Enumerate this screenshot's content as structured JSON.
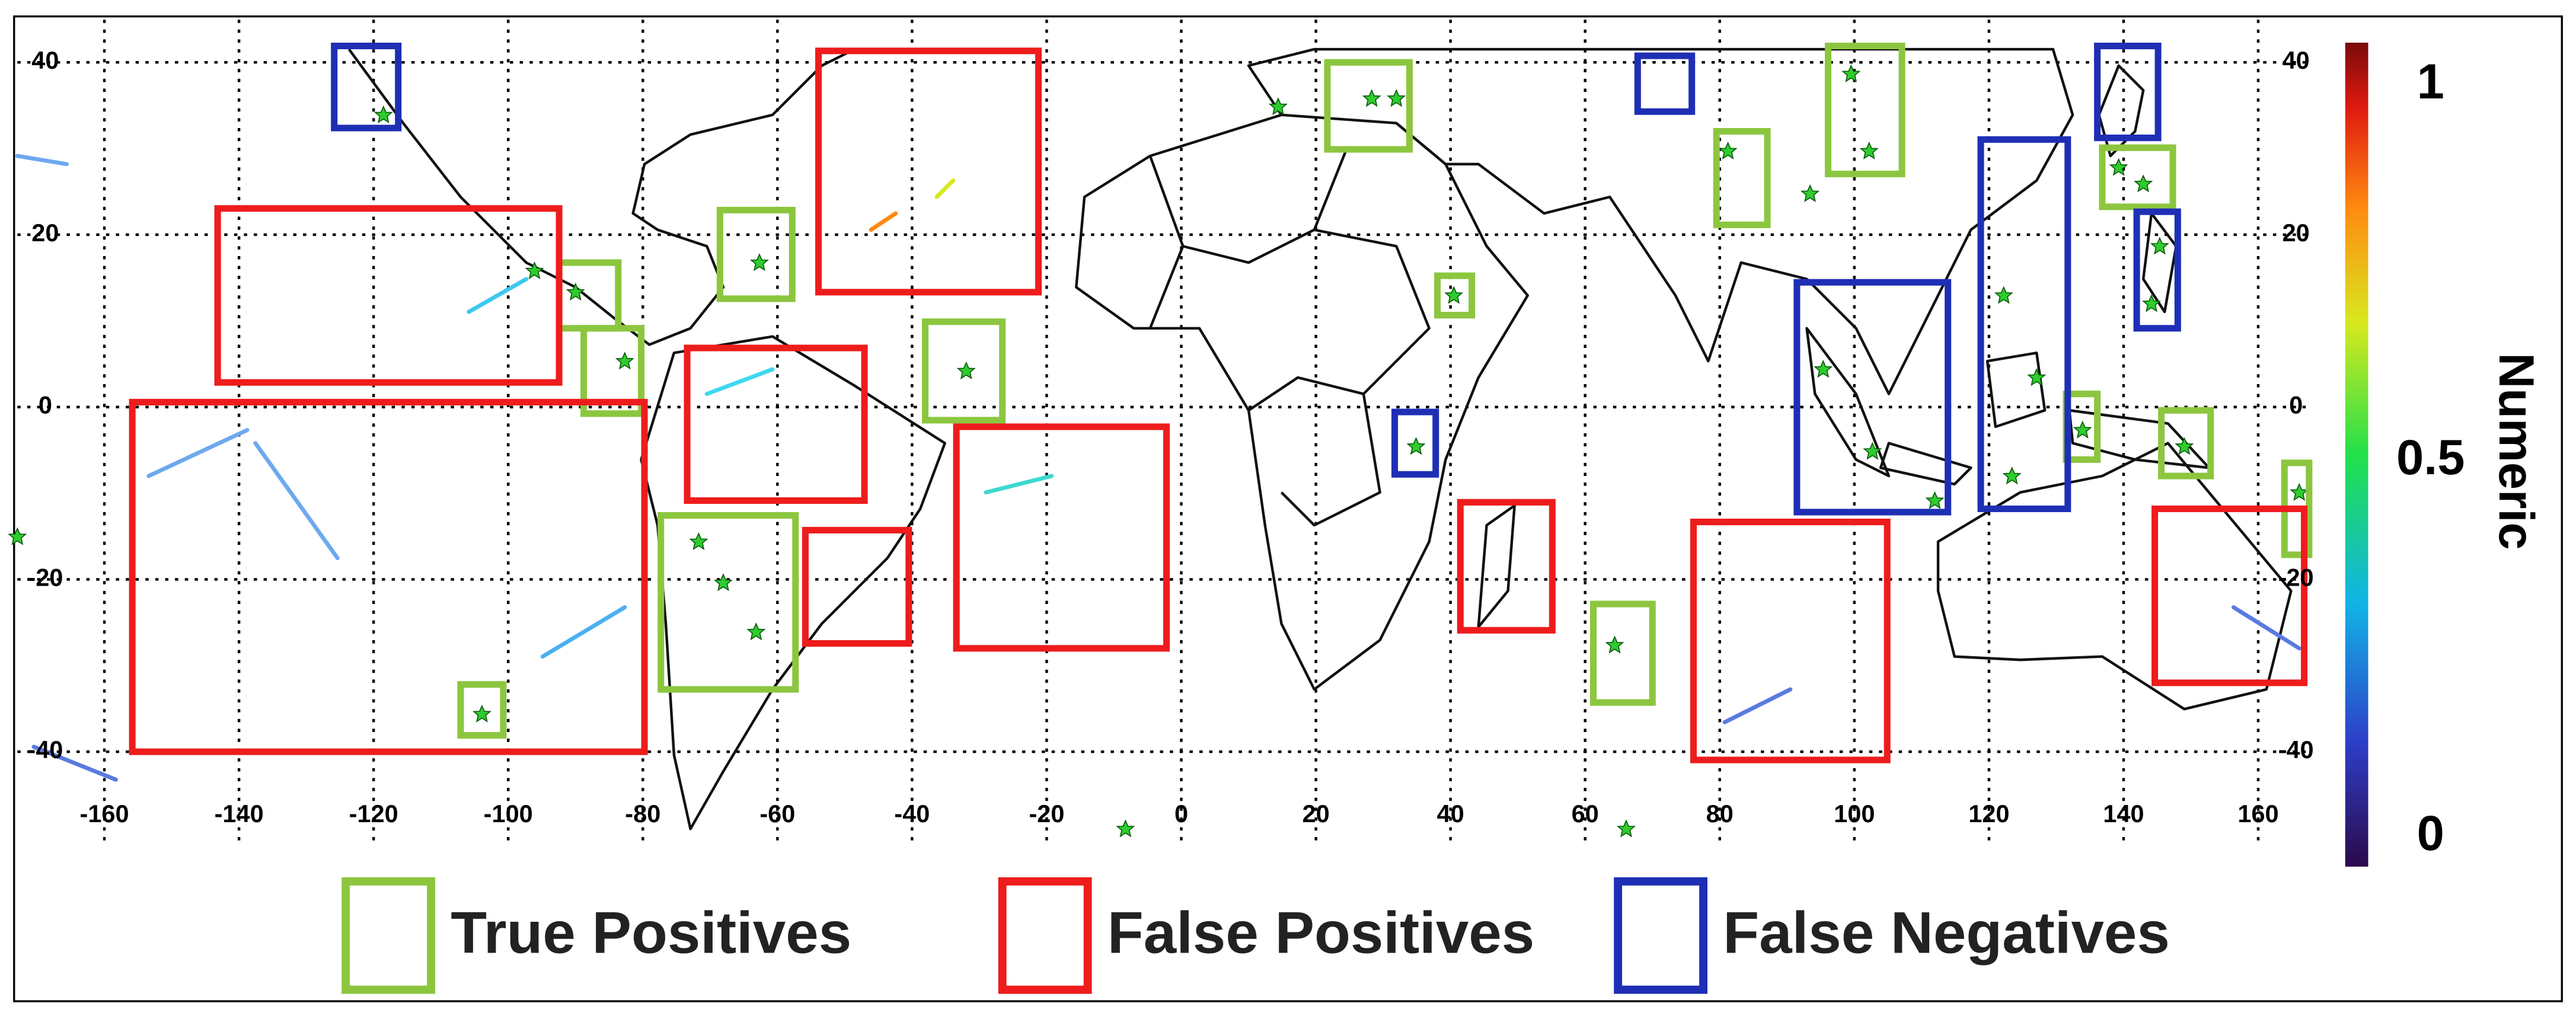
{
  "map": {
    "xticks": [
      -160,
      -140,
      -120,
      -100,
      -80,
      -60,
      -40,
      -20,
      0,
      20,
      40,
      60,
      80,
      100,
      120,
      140,
      160
    ],
    "yticks": [
      40,
      20,
      0,
      -20,
      -40
    ],
    "colorbar": {
      "title": "Numeric",
      "ticks": [
        1,
        0.5,
        0
      ]
    },
    "legend": [
      {
        "name": "True Positives",
        "color": "#8cc63f"
      },
      {
        "name": "False Positives",
        "color": "#ee1c1c"
      },
      {
        "name": "False Negatives",
        "color": "#1f2fb5"
      }
    ]
  }
}
